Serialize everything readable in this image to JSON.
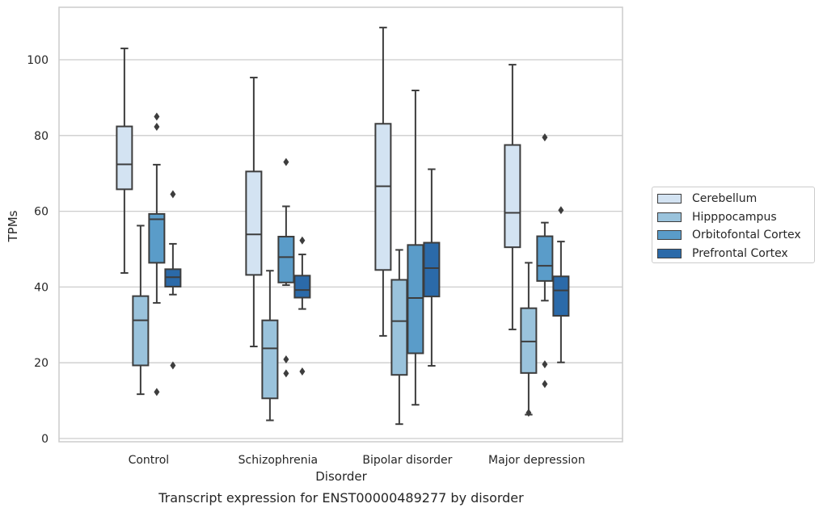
{
  "chart_data": {
    "type": "box",
    "xlabel": "Disorder",
    "ylabel": "TPMs",
    "caption": "Transcript expression for ENST00000489277 by disorder",
    "categories": [
      "Control",
      "Schizophrenia",
      "Bipolar disorder",
      "Major depression"
    ],
    "ylim": [
      -1,
      114
    ],
    "yticks": [
      0,
      20,
      40,
      60,
      80,
      100
    ],
    "grid": "horizontal",
    "legend_position": "right",
    "series": [
      {
        "name": "Cerebellum",
        "color": "#d3e3f2",
        "boxes": [
          {
            "whislo": 43.7,
            "q1": 65.8,
            "med": 72.4,
            "q3": 82.4,
            "whishi": 103.0,
            "fliers": []
          },
          {
            "whislo": 24.3,
            "q1": 43.2,
            "med": 53.9,
            "q3": 70.5,
            "whishi": 95.3,
            "fliers": []
          },
          {
            "whislo": 27.1,
            "q1": 44.5,
            "med": 66.6,
            "q3": 83.1,
            "whishi": 108.5,
            "fliers": []
          },
          {
            "whislo": 28.8,
            "q1": 50.5,
            "med": 59.6,
            "q3": 77.5,
            "whishi": 98.7,
            "fliers": []
          }
        ]
      },
      {
        "name": "Hipppocampus",
        "color": "#9ac3dc",
        "boxes": [
          {
            "whislo": 11.7,
            "q1": 19.3,
            "med": 31.2,
            "q3": 37.6,
            "whishi": 56.2,
            "fliers": []
          },
          {
            "whislo": 4.8,
            "q1": 10.6,
            "med": 23.8,
            "q3": 31.2,
            "whishi": 44.3,
            "fliers": []
          },
          {
            "whislo": 3.8,
            "q1": 16.8,
            "med": 31.0,
            "q3": 41.9,
            "whishi": 49.8,
            "fliers": []
          },
          {
            "whislo": 6.3,
            "q1": 17.3,
            "med": 25.6,
            "q3": 34.4,
            "whishi": 46.4,
            "fliers": [
              6.8
            ]
          }
        ]
      },
      {
        "name": "Orbitofontal Cortex",
        "color": "#5a9cc9",
        "boxes": [
          {
            "whislo": 35.8,
            "q1": 46.4,
            "med": 57.9,
            "q3": 59.3,
            "whishi": 72.3,
            "fliers": [
              85.0,
              82.3,
              12.3
            ]
          },
          {
            "whislo": 40.5,
            "q1": 41.2,
            "med": 47.9,
            "q3": 53.3,
            "whishi": 61.3,
            "fliers": [
              73.0,
              20.9,
              17.2
            ]
          },
          {
            "whislo": 8.9,
            "q1": 22.5,
            "med": 37.1,
            "q3": 51.1,
            "whishi": 91.9,
            "fliers": []
          },
          {
            "whislo": 36.4,
            "q1": 41.6,
            "med": 45.6,
            "q3": 53.4,
            "whishi": 57.0,
            "fliers": [
              79.5,
              19.6,
              14.4
            ]
          }
        ]
      },
      {
        "name": "Prefrontal Cortex",
        "color": "#2b6aa9",
        "boxes": [
          {
            "whislo": 38.0,
            "q1": 40.1,
            "med": 42.6,
            "q3": 44.7,
            "whishi": 51.4,
            "fliers": [
              64.5,
              19.3
            ]
          },
          {
            "whislo": 34.2,
            "q1": 37.2,
            "med": 39.2,
            "q3": 43.0,
            "whishi": 48.6,
            "fliers": [
              52.3,
              17.7
            ]
          },
          {
            "whislo": 19.2,
            "q1": 37.5,
            "med": 45.0,
            "q3": 51.7,
            "whishi": 71.1,
            "fliers": []
          },
          {
            "whislo": 20.1,
            "q1": 32.4,
            "med": 39.1,
            "q3": 42.8,
            "whishi": 52.0,
            "fliers": [
              60.3
            ]
          }
        ]
      }
    ]
  }
}
